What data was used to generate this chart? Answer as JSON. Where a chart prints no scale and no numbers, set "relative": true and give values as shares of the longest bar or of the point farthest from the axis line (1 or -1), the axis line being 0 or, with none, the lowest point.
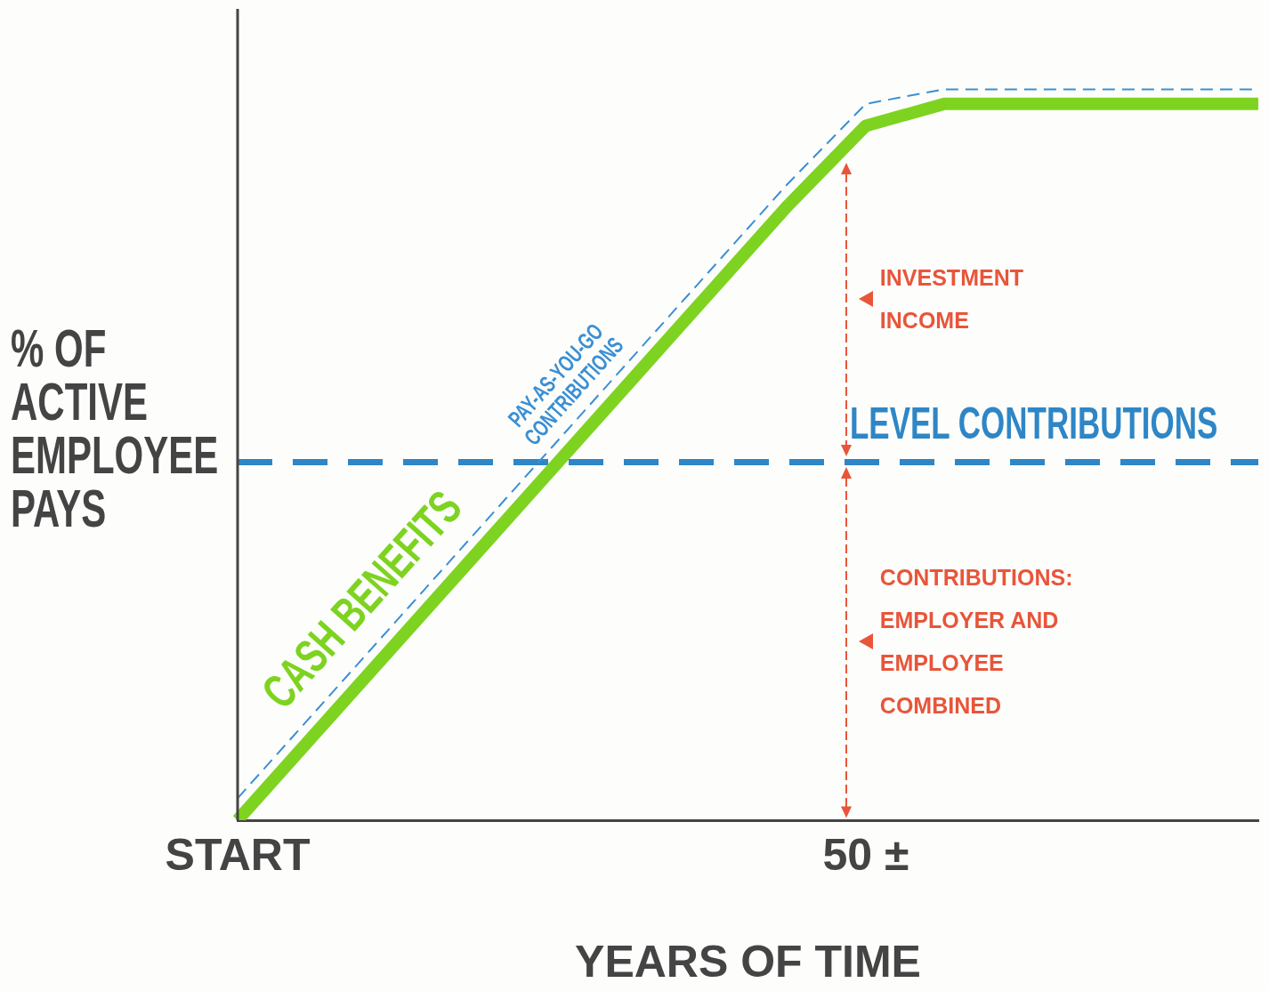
{
  "chart_data": {
    "type": "line",
    "relative": true,
    "xlabel": "YEARS OF TIME",
    "ylabel": "% OF ACTIVE EMPLOYEE PAYS",
    "tick_labels": "x",
    "grid": false,
    "legend": false,
    "marker": "none",
    "categories": [
      "START",
      null,
      null,
      null,
      null,
      null,
      null,
      null,
      "50 ±",
      null,
      null,
      null,
      null,
      null
    ],
    "series": [
      {
        "name": "CASH BENEFITS",
        "color": "#7ed321",
        "line_style": "solid",
        "values": [
          0,
          0.12,
          0.24,
          0.36,
          0.48,
          0.6,
          0.72,
          0.84,
          0.95,
          0.98,
          0.98,
          0.98,
          0.98,
          0.98
        ]
      },
      {
        "name": "PAY-AS-YOU-GO CONTRIBUTIONS",
        "color": "#3b8fd4",
        "line_style": "dashed",
        "values": [
          0.03,
          0.15,
          0.27,
          0.39,
          0.51,
          0.63,
          0.75,
          0.87,
          0.98,
          1,
          1,
          1,
          1,
          1
        ]
      },
      {
        "name": "LEVEL CONTRIBUTIONS",
        "color": "#2f86c6",
        "line_style": "dashed",
        "values": [
          0.49,
          0.49,
          0.49,
          0.49,
          0.49,
          0.49,
          0.49,
          0.49,
          0.49,
          0.49,
          0.49,
          0.49,
          0.49,
          0.49
        ]
      }
    ],
    "annotations": [
      "INVESTMENT INCOME",
      "CONTRIBUTIONS: EMPLOYER AND EMPLOYEE COMBINED"
    ]
  }
}
